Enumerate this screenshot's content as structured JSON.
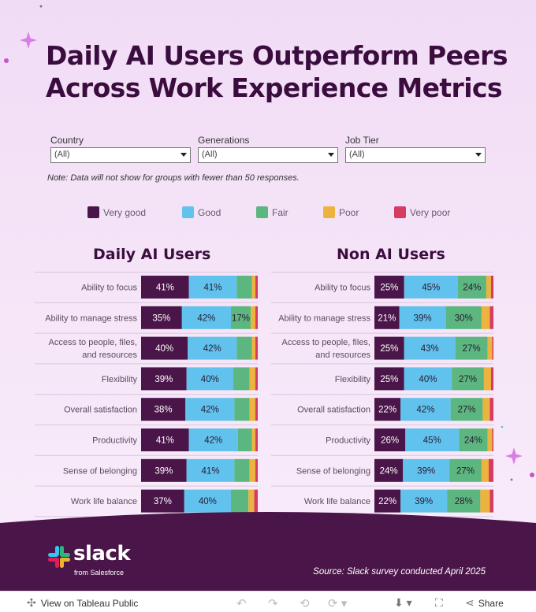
{
  "title": "Daily AI Users Outperform Peers Across Work Experience Metrics",
  "filters": [
    {
      "label": "Country",
      "value": "(All)"
    },
    {
      "label": "Generations",
      "value": "(All)"
    },
    {
      "label": "Job Tier",
      "value": "(All)"
    }
  ],
  "note": "Note: Data will not show for groups with fewer than 50 responses.",
  "colors": {
    "very_good": "#4a1548",
    "good": "#62c2ee",
    "fair": "#5cb67f",
    "poor": "#ecb33e",
    "very_poor": "#d63b62",
    "title": "#3b0d3f",
    "footer": "#4a1548"
  },
  "chart_data": {
    "type": "bar",
    "stacked": true,
    "orientation": "horizontal",
    "legend": [
      "Very good",
      "Good",
      "Fair",
      "Poor",
      "Very poor"
    ],
    "legend_position": "top",
    "categories": [
      "Ability to focus",
      "Ability to manage stress",
      "Access to people, files, and resources",
      "Flexibility",
      "Overall satisfaction",
      "Productivity",
      "Sense of belonging",
      "Work life balance"
    ],
    "panels": [
      {
        "title": "Daily AI Users",
        "series": [
          {
            "name": "Very good",
            "values": [
              41,
              35,
              40,
              39,
              38,
              41,
              39,
              37
            ]
          },
          {
            "name": "Good",
            "values": [
              41,
              42,
              42,
              40,
              42,
              42,
              41,
              40
            ]
          },
          {
            "name": "Fair",
            "values": [
              13,
              17,
              13,
              14,
              13,
              12,
              13,
              15
            ]
          },
          {
            "name": "Poor",
            "values": [
              3,
              4,
              3,
              5,
              5,
              3,
              5,
              5
            ]
          },
          {
            "name": "Very poor",
            "values": [
              2,
              2,
              2,
              2,
              2,
              2,
              2,
              3
            ]
          }
        ]
      },
      {
        "title": "Non AI Users",
        "series": [
          {
            "name": "Very good",
            "values": [
              25,
              21,
              25,
              25,
              22,
              26,
              24,
              22
            ]
          },
          {
            "name": "Good",
            "values": [
              45,
              39,
              43,
              40,
              42,
              45,
              39,
              39
            ]
          },
          {
            "name": "Fair",
            "values": [
              24,
              30,
              27,
              27,
              27,
              24,
              27,
              28
            ]
          },
          {
            "name": "Poor",
            "values": [
              4,
              7,
              4,
              6,
              6,
              4,
              6,
              8
            ]
          },
          {
            "name": "Very poor",
            "values": [
              2,
              3,
              1,
              2,
              3,
              1,
              4,
              3
            ]
          }
        ]
      }
    ],
    "data_labels": {
      "min_value_shown": 16
    }
  },
  "footer": {
    "logo_word": "slack",
    "logo_from": "from Salesforce",
    "source": "Source: Slack survey conducted April 2025"
  },
  "toolbar": {
    "view_label": "View on Tableau Public",
    "share_label": "Share"
  }
}
